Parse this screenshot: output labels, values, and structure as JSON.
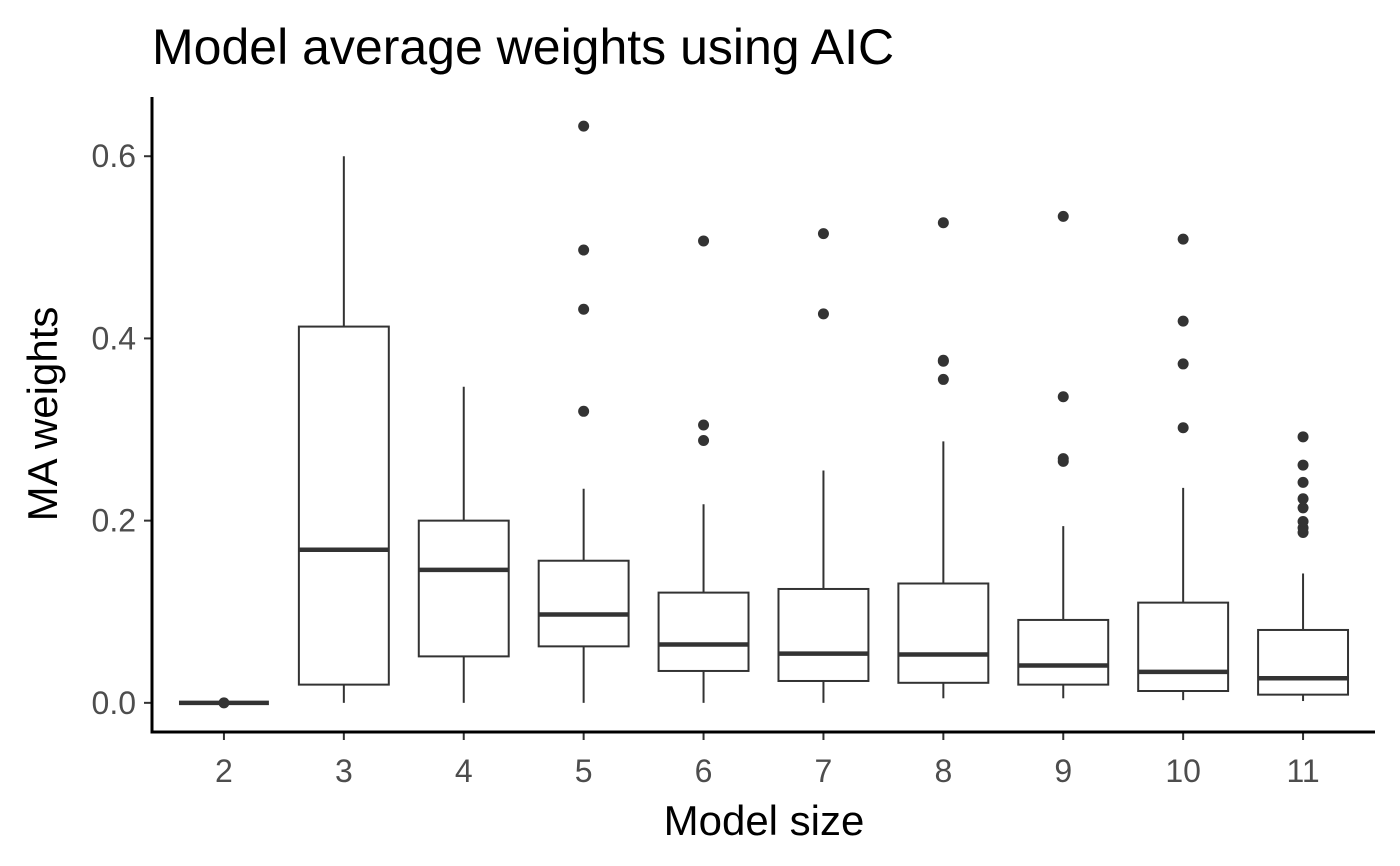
{
  "chart_data": {
    "type": "boxplot",
    "title": "Model average weights using AIC",
    "xlabel": "Model size",
    "ylabel": "MA weights",
    "ylim": [
      -0.032,
      0.665
    ],
    "yticks": [
      0.0,
      0.2,
      0.4,
      0.6
    ],
    "ytick_labels": [
      "0.0",
      "0.2",
      "0.4",
      "0.6"
    ],
    "grid": false,
    "legend": "none",
    "colors": {
      "box_stroke": "#333333",
      "box_fill": "#ffffff",
      "axis": "#000000",
      "tick_text": "#4d4d4d"
    },
    "categories": [
      "2",
      "3",
      "4",
      "5",
      "6",
      "7",
      "8",
      "9",
      "10",
      "11"
    ],
    "boxes": [
      {
        "category": "2",
        "whisker_low": 0.0,
        "q1": 0.0,
        "median": 0.0,
        "q3": 0.0,
        "whisker_high": 0.0,
        "outliers": [
          0.0
        ]
      },
      {
        "category": "3",
        "whisker_low": 0.0,
        "q1": 0.02,
        "median": 0.168,
        "q3": 0.413,
        "whisker_high": 0.6,
        "outliers": []
      },
      {
        "category": "4",
        "whisker_low": 0.0,
        "q1": 0.051,
        "median": 0.146,
        "q3": 0.2,
        "whisker_high": 0.347,
        "outliers": []
      },
      {
        "category": "5",
        "whisker_low": 0.0,
        "q1": 0.062,
        "median": 0.097,
        "q3": 0.156,
        "whisker_high": 0.235,
        "outliers": [
          0.32,
          0.432,
          0.497,
          0.633
        ]
      },
      {
        "category": "6",
        "whisker_low": 0.0,
        "q1": 0.035,
        "median": 0.064,
        "q3": 0.121,
        "whisker_high": 0.218,
        "outliers": [
          0.288,
          0.305,
          0.507
        ]
      },
      {
        "category": "7",
        "whisker_low": 0.0,
        "q1": 0.024,
        "median": 0.054,
        "q3": 0.125,
        "whisker_high": 0.255,
        "outliers": [
          0.427,
          0.515
        ]
      },
      {
        "category": "8",
        "whisker_low": 0.005,
        "q1": 0.022,
        "median": 0.053,
        "q3": 0.131,
        "whisker_high": 0.287,
        "outliers": [
          0.355,
          0.375,
          0.376,
          0.527
        ]
      },
      {
        "category": "9",
        "whisker_low": 0.005,
        "q1": 0.02,
        "median": 0.041,
        "q3": 0.091,
        "whisker_high": 0.194,
        "outliers": [
          0.265,
          0.268,
          0.336,
          0.534
        ]
      },
      {
        "category": "10",
        "whisker_low": 0.003,
        "q1": 0.013,
        "median": 0.034,
        "q3": 0.11,
        "whisker_high": 0.236,
        "outliers": [
          0.302,
          0.372,
          0.419,
          0.509
        ]
      },
      {
        "category": "11",
        "whisker_low": 0.002,
        "q1": 0.009,
        "median": 0.027,
        "q3": 0.08,
        "whisker_high": 0.142,
        "outliers": [
          0.187,
          0.192,
          0.199,
          0.214,
          0.224,
          0.242,
          0.261,
          0.292
        ]
      }
    ]
  }
}
